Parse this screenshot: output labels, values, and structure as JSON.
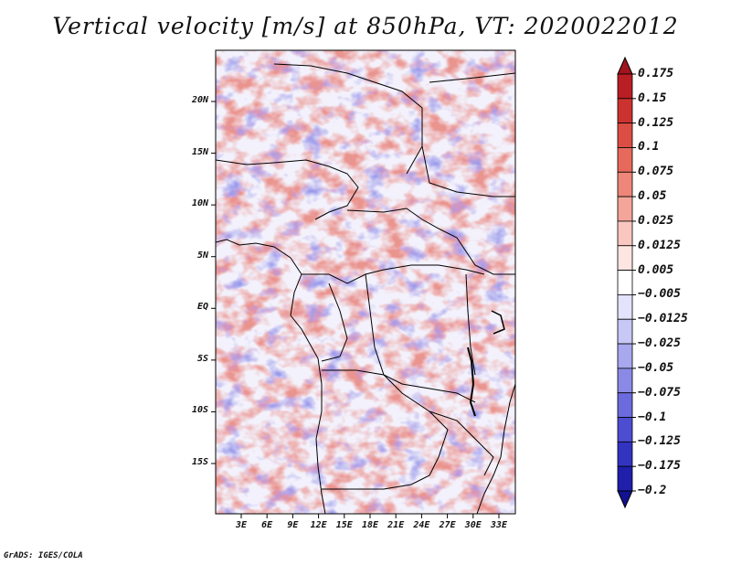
{
  "title": "Vertical velocity [m/s] at 850hPa, VT: 2020022012",
  "credit": "GrADS: IGES/COLA",
  "map": {
    "lat_labels": [
      "20N",
      "15N",
      "10N",
      "5N",
      "EQ",
      "5S",
      "10S",
      "15S"
    ],
    "lat_values": [
      20,
      15,
      10,
      5,
      0,
      -5,
      -10,
      -15
    ],
    "lon_labels": [
      "3E",
      "6E",
      "9E",
      "12E",
      "15E",
      "18E",
      "21E",
      "24E",
      "27E",
      "30E",
      "33E"
    ],
    "lon_values": [
      3,
      6,
      9,
      12,
      15,
      18,
      21,
      24,
      27,
      30,
      33
    ],
    "lon_range": [
      0,
      35
    ],
    "lat_range": [
      -20,
      25
    ]
  },
  "colorbar": {
    "labels": [
      "0.175",
      "0.15",
      "0.125",
      "0.1",
      "0.075",
      "0.05",
      "0.025",
      "0.0125",
      "0.005",
      "−0.005",
      "−0.0125",
      "−0.025",
      "−0.05",
      "−0.075",
      "−0.1",
      "−0.125",
      "−0.175",
      "−0.2"
    ],
    "colors": [
      "#a0141e",
      "#b81e23",
      "#cc3330",
      "#dc4e44",
      "#e6695c",
      "#ee8679",
      "#f4a59a",
      "#f9c7c0",
      "#fde6e2",
      "#ffffff",
      "#e3e3fb",
      "#c8c8f6",
      "#a8a8ef",
      "#8a8ae6",
      "#6b6bdd",
      "#4d4dd1",
      "#3333c2",
      "#1f1fab",
      "#121290"
    ]
  }
}
